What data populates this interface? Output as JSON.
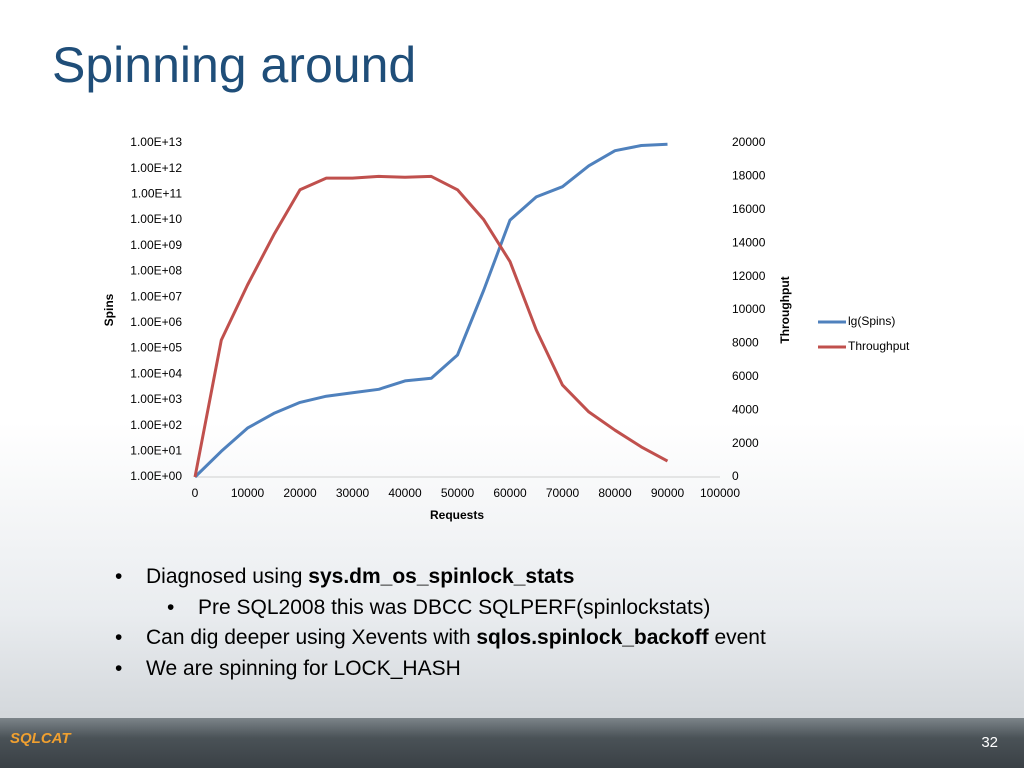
{
  "title": "Spinning around",
  "bullets": [
    {
      "level": 1,
      "parts": [
        {
          "text": "Diagnosed using "
        },
        {
          "text": "sys.dm_os_spinlock_stats",
          "bold": true
        }
      ]
    },
    {
      "level": 2,
      "parts": [
        {
          "text": "Pre SQL2008 this was DBCC SQLPERF(spinlockstats)"
        }
      ]
    },
    {
      "level": 1,
      "parts": [
        {
          "text": "Can dig deeper using Xevents with "
        },
        {
          "text": "sqlos.spinlock_backoff",
          "bold": true
        },
        {
          "text": " event"
        }
      ]
    },
    {
      "level": 1,
      "parts": [
        {
          "text": "We are spinning for LOCK_HASH"
        }
      ]
    }
  ],
  "logo": "SQLCAT",
  "page_number": "32",
  "chart_data": {
    "type": "line",
    "x_label": "Requests",
    "y_label": "Spins",
    "y2_label": "Throughput",
    "x": [
      0,
      5000,
      10000,
      15000,
      20000,
      25000,
      30000,
      35000,
      40000,
      45000,
      50000,
      55000,
      60000,
      65000,
      70000,
      75000,
      80000,
      85000,
      90000
    ],
    "series": [
      {
        "name": "lg(Spins)",
        "color": "#4f81bd",
        "values": [
          1,
          10,
          80,
          300,
          800,
          1400,
          1900,
          2600,
          5500,
          7000,
          56000,
          19000000,
          10000000000,
          80000000000,
          200000000000,
          1300000000000,
          5000000000000,
          8000000000000,
          9000000000000
        ]
      },
      {
        "name": "Throughput",
        "color": "#c0504d",
        "axis": "y2",
        "values": [
          0,
          8200,
          11500,
          14500,
          17200,
          17900,
          17900,
          18000,
          17950,
          18000,
          17200,
          15400,
          12900,
          8800,
          5500,
          3900,
          2800,
          1800,
          950
        ]
      }
    ],
    "xlim": [
      0,
      100000
    ],
    "xticks": [
      0,
      10000,
      20000,
      30000,
      40000,
      50000,
      60000,
      70000,
      80000,
      90000,
      100000
    ],
    "ylog": true,
    "ylim": [
      1,
      10000000000000
    ],
    "yticks": [
      {
        "value": 1,
        "label": "1.00E+00"
      },
      {
        "value": 10,
        "label": "1.00E+01"
      },
      {
        "value": 100,
        "label": "1.00E+02"
      },
      {
        "value": 1000,
        "label": "1.00E+03"
      },
      {
        "value": 10000,
        "label": "1.00E+04"
      },
      {
        "value": 100000,
        "label": "1.00E+05"
      },
      {
        "value": 1000000,
        "label": "1.00E+06"
      },
      {
        "value": 10000000,
        "label": "1.00E+07"
      },
      {
        "value": 100000000,
        "label": "1.00E+08"
      },
      {
        "value": 1000000000,
        "label": "1.00E+09"
      },
      {
        "value": 10000000000,
        "label": "1.00E+10"
      },
      {
        "value": 100000000000,
        "label": "1.00E+11"
      },
      {
        "value": 1000000000000,
        "label": "1.00E+12"
      },
      {
        "value": 10000000000000,
        "label": "1.00E+13"
      }
    ],
    "y2lim": [
      0,
      20000
    ],
    "y2ticks": [
      0,
      2000,
      4000,
      6000,
      8000,
      10000,
      12000,
      14000,
      16000,
      18000,
      20000
    ],
    "grid": false,
    "legend": "right"
  }
}
